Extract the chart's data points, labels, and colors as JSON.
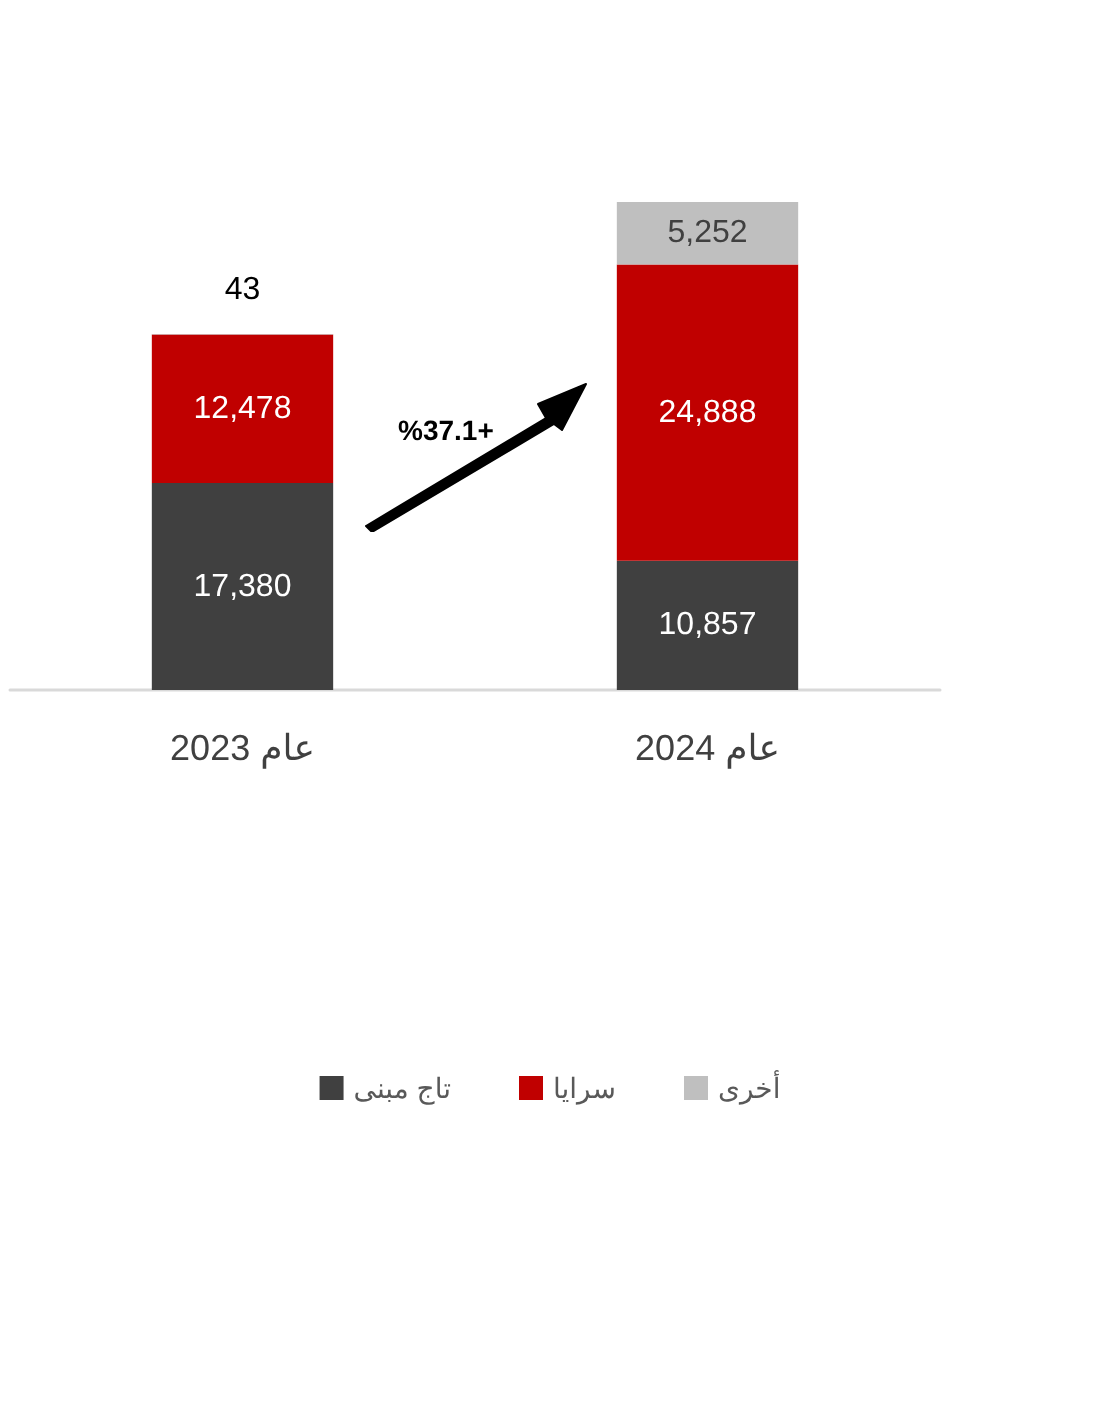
{
  "chart_data": {
    "type": "bar",
    "stacked": true,
    "categories": [
      "عام 2023",
      "عام 2024"
    ],
    "series": [
      {
        "name": "تاج مبنى",
        "color": "#404040",
        "values": [
          17380,
          10857
        ],
        "value_labels": [
          "17,380",
          "10,857"
        ]
      },
      {
        "name": "سرايا",
        "color": "#c00000",
        "values": [
          12478,
          24888
        ],
        "value_labels": [
          "12,478",
          "24,888"
        ]
      },
      {
        "name": "أخرى",
        "color": "#bfbfbf",
        "values": [
          43,
          5252
        ],
        "value_labels": [
          "43",
          "5,252"
        ]
      }
    ],
    "legend": "bottom",
    "tick_labels": "x",
    "annotations": [
      "%37.1+"
    ]
  }
}
